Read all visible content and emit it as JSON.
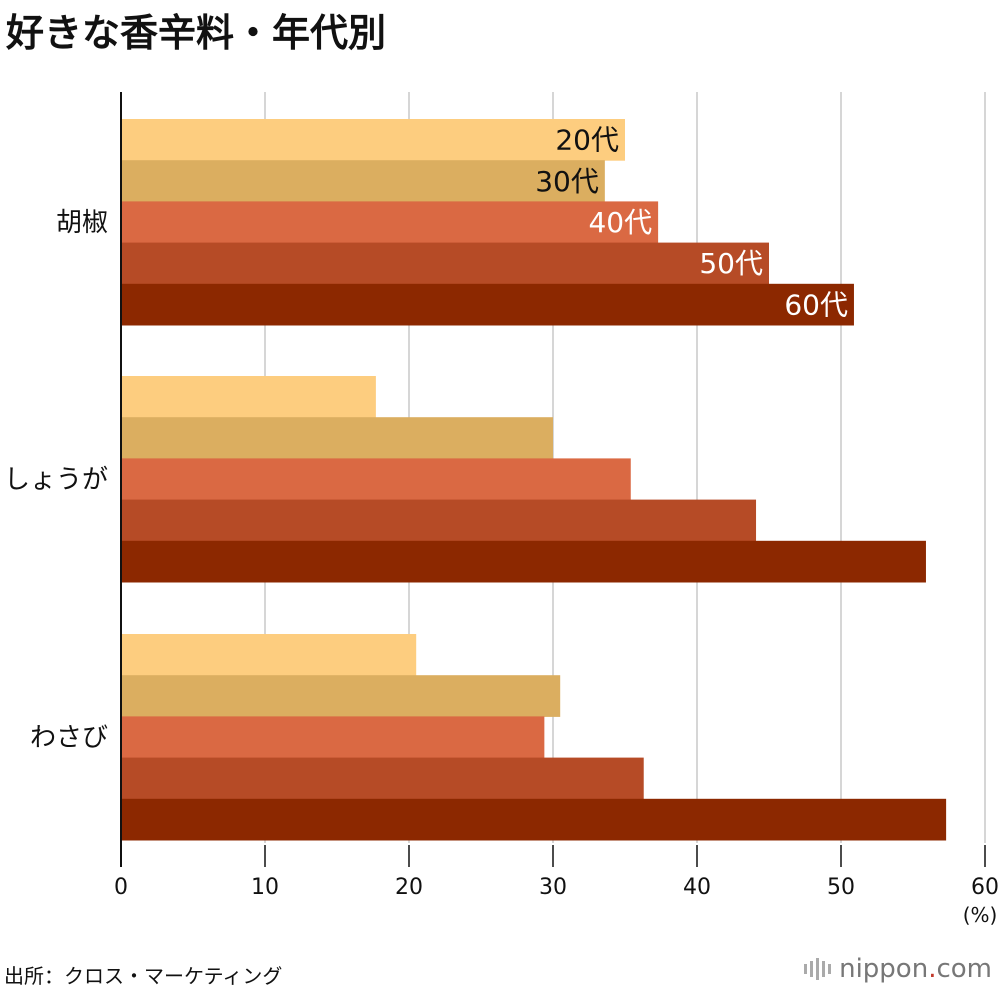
{
  "title": "好きな香辛料・年代別",
  "source": "出所：クロス・マーケティング",
  "brand": {
    "name": "nippon",
    "dot": ".",
    "tld": "com"
  },
  "chart_data": {
    "type": "bar",
    "orientation": "horizontal",
    "categories": [
      "胡椒",
      "しょうが",
      "わさび"
    ],
    "series": [
      {
        "name": "20代",
        "color": "#fdcd7f",
        "values": [
          35.0,
          17.7,
          20.5
        ]
      },
      {
        "name": "30代",
        "color": "#dbae60",
        "values": [
          33.6,
          30.0,
          30.5
        ]
      },
      {
        "name": "40代",
        "color": "#da6943",
        "values": [
          37.3,
          35.4,
          29.4
        ]
      },
      {
        "name": "50代",
        "color": "#b64b26",
        "values": [
          45.0,
          44.1,
          36.3
        ]
      },
      {
        "name": "60代",
        "color": "#8c2800",
        "values": [
          50.9,
          55.9,
          57.3
        ]
      }
    ],
    "series_label_colors": [
      "#111111",
      "#111111",
      "#ffffff",
      "#ffffff",
      "#ffffff"
    ],
    "xlim": [
      0,
      60
    ],
    "xticks": [
      "0",
      "10",
      "20",
      "30",
      "40",
      "50",
      "60"
    ],
    "xunit": "(%)",
    "grid": true,
    "legend": "inline labels on first category bars"
  }
}
